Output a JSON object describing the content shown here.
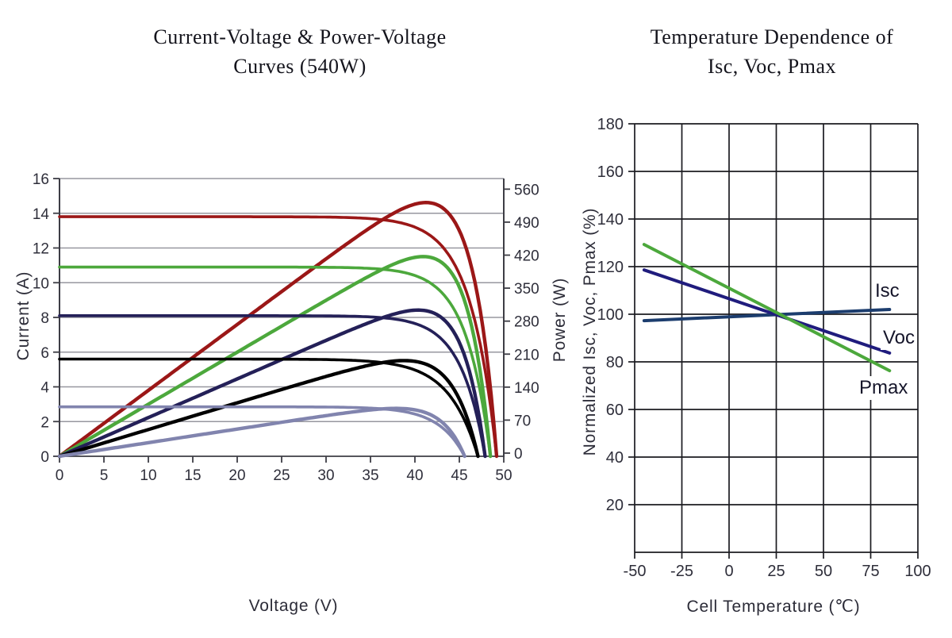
{
  "chart_data": [
    {
      "type": "line",
      "title_line1": "Current-Voltage & Power-Voltage",
      "title_line2": "Curves (540W)",
      "xlabel": "Voltage (V)",
      "ylabel": "Current (A)",
      "y2label": "Power (W)",
      "x_ticks": [
        0,
        5,
        10,
        15,
        20,
        25,
        30,
        35,
        40,
        45,
        50
      ],
      "y_ticks": [
        0,
        2,
        4,
        6,
        8,
        10,
        12,
        14,
        16
      ],
      "y2_ticks": [
        0,
        70,
        140,
        210,
        280,
        350,
        420,
        490,
        560
      ],
      "xlim": [
        0,
        50
      ],
      "ylim": [
        0,
        16
      ],
      "y2lim": [
        0,
        560
      ],
      "grid": "horizontal-only",
      "grid_color": "#97979f",
      "axis_color": "#3d3d45",
      "curves": [
        {
          "id": "curve-1",
          "color": "#9b1717",
          "isc": 13.8,
          "voc": 49.2,
          "vmp": 41.5,
          "imp": 12.8,
          "pmax": 531
        },
        {
          "id": "curve-2",
          "color": "#4ca83c",
          "isc": 10.9,
          "voc": 48.5,
          "vmp": 41.0,
          "imp": 10.2,
          "pmax": 418
        },
        {
          "id": "curve-3",
          "color": "#242058",
          "isc": 8.1,
          "voc": 47.9,
          "vmp": 40.5,
          "imp": 7.56,
          "pmax": 306
        },
        {
          "id": "curve-4",
          "color": "#000000",
          "isc": 5.6,
          "voc": 47.1,
          "vmp": 39.5,
          "imp": 5.06,
          "pmax": 200
        },
        {
          "id": "curve-5",
          "color": "#8184ae",
          "isc": 2.85,
          "voc": 45.6,
          "vmp": 38.5,
          "imp": 2.6,
          "pmax": 100
        }
      ]
    },
    {
      "type": "line",
      "title_line1": "Temperature Dependence of",
      "title_line2": "Isc, Voc, Pmax",
      "xlabel": "Cell Temperature (℃)",
      "ylabel": "Normalized Isc, Voc, Pmax (%)",
      "x_ticks": [
        -50,
        -25,
        0,
        25,
        50,
        75,
        100
      ],
      "y_ticks": [
        20,
        40,
        60,
        80,
        100,
        120,
        140,
        160,
        180
      ],
      "xlim": [
        -50,
        100
      ],
      "ylim": [
        0,
        180
      ],
      "grid": "full",
      "grid_color": "#1b1b20",
      "series": [
        {
          "name": "Isc",
          "color": "#1c3d6e",
          "points": [
            [
              -45,
              97.3
            ],
            [
              85,
              102.0
            ]
          ]
        },
        {
          "name": "Voc",
          "color": "#201c7d",
          "points": [
            [
              -45,
              118.6
            ],
            [
              85,
              83.7
            ]
          ]
        },
        {
          "name": "Pmax",
          "color": "#4ca83c",
          "points": [
            [
              -45,
              129.3
            ],
            [
              85,
              76.3
            ]
          ]
        }
      ]
    }
  ]
}
